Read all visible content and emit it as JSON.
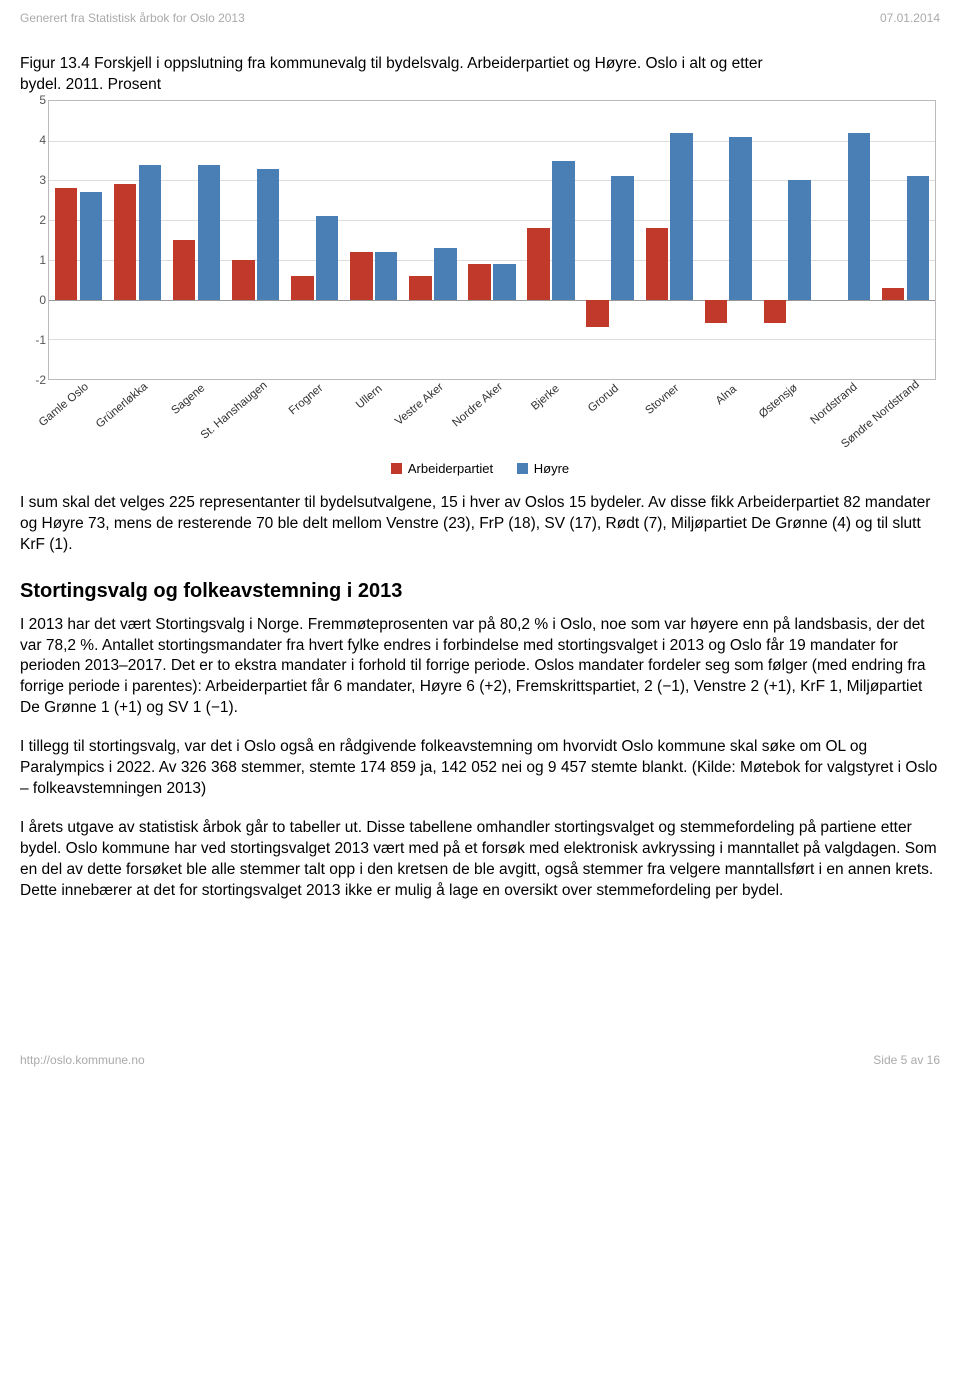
{
  "header": {
    "left": "Generert fra Statistisk årbok for Oslo 2013",
    "right": "07.01.2014"
  },
  "caption": {
    "line1": "Figur 13.4 Forskjell i oppslutning fra kommunevalg til bydelsvalg. Arbeiderpartiet og Høyre. Oslo i alt og etter",
    "line2": "bydel. 2011. Prosent"
  },
  "chart": {
    "type": "bar",
    "ymin": -2,
    "ymax": 5,
    "yticks": [
      -2,
      -1,
      0,
      1,
      2,
      3,
      4,
      5
    ],
    "grid_color": "#dddddd",
    "border_color": "#bbbbbb",
    "series": [
      {
        "name": "Arbeiderpartiet",
        "color": "#c0392b"
      },
      {
        "name": "Høyre",
        "color": "#4a7fb5"
      }
    ],
    "categories": [
      "Gamle Oslo",
      "Grünerløkka",
      "Sagene",
      "St. Hanshaugen",
      "Frogner",
      "Ullern",
      "Vestre Aker",
      "Nordre Aker",
      "Bjerke",
      "Grorud",
      "Stovner",
      "Alna",
      "Østensjø",
      "Nordstrand",
      "Søndre Nordstrand"
    ],
    "values_arbeiderpartiet": [
      2.8,
      2.9,
      1.5,
      1.0,
      0.6,
      1.2,
      0.6,
      0.9,
      1.8,
      -0.7,
      1.8,
      -0.6,
      -0.6,
      0.0,
      0.3
    ],
    "values_hoyre": [
      2.7,
      3.4,
      3.4,
      3.3,
      2.1,
      1.2,
      1.3,
      0.9,
      3.5,
      3.1,
      4.2,
      4.1,
      3.0,
      4.2,
      3.1
    ]
  },
  "legend": {
    "a": "Arbeiderpartiet",
    "b": "Høyre"
  },
  "p1": "I sum skal det velges 225 representanter til bydelsutvalgene, 15 i hver av Oslos 15 bydeler. Av disse fikk Arbeiderpartiet 82 mandater og Høyre 73, mens de resterende 70 ble delt mellom Venstre (23), FrP (18), SV (17), Rødt (7), Miljøpartiet De Grønne (4) og til slutt KrF (1).",
  "h2": "Stortingsvalg og folkeavstemning i 2013",
  "p2": "I 2013 har det vært Stortingsvalg i Norge. Fremmøteprosenten var på 80,2 % i Oslo, noe som var høyere enn på landsbasis, der det var 78,2 %. Antallet stortingsmandater fra hvert fylke endres i forbindelse med stortingsvalget i 2013 og Oslo får 19 mandater for perioden 2013–2017. Det er to ekstra mandater i forhold til forrige periode. Oslos mandater fordeler seg som følger (med endring fra forrige periode i parentes): Arbeiderpartiet får 6 mandater, Høyre 6 (+2), Fremskrittspartiet, 2 (−1), Venstre 2 (+1), KrF 1, Miljøpartiet De Grønne 1 (+1) og SV 1 (−1).",
  "p3": "I tillegg til stortingsvalg, var det i Oslo også en rådgivende folkeavstemning om hvorvidt Oslo kommune skal søke om OL og Paralympics i 2022. Av 326 368 stemmer, stemte 174 859 ja, 142 052 nei og 9 457 stemte blankt. (Kilde: Møtebok for valgstyret i Oslo – folkeavstemningen 2013)",
  "p4": "I årets utgave av statistisk årbok går to tabeller ut. Disse tabellene omhandler stortingsvalget og stemmefordeling på partiene etter bydel. Oslo kommune har ved stortingsvalget 2013 vært med på et forsøk med elektronisk avkryssing i manntallet på valgdagen. Som en del av dette forsøket ble alle stemmer talt opp i den kretsen de ble avgitt, også stemmer fra velgere manntallsført i en annen krets. Dette innebærer at det for stortingsvalget 2013 ikke er mulig å lage en oversikt over stemmefordeling per bydel.",
  "footer": {
    "left": "http://oslo.kommune.no",
    "right": "Side 5 av 16"
  }
}
